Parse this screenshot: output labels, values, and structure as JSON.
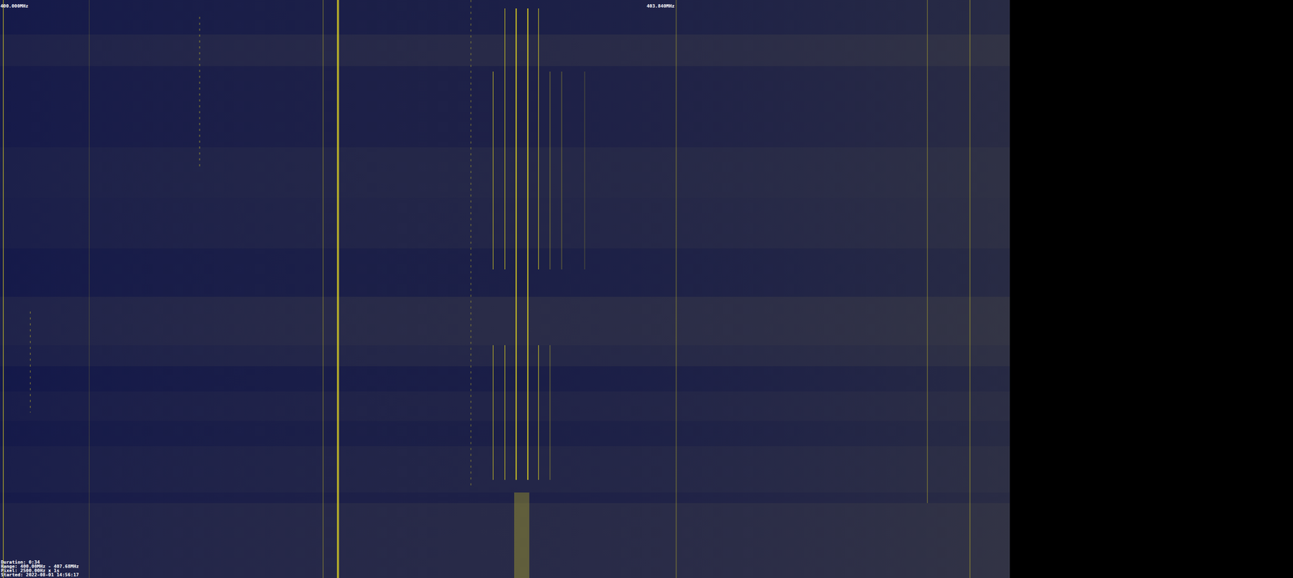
{
  "chart_data": {
    "type": "waterfall",
    "xlim": [
      400,
      407.68
    ],
    "ylim": [
      0,
      1373
    ],
    "band_end": 406.0,
    "xticks": [
      {
        "value": 400,
        "label": "400.000MHz"
      },
      {
        "value": 403.84,
        "label": "403.840MHz"
      }
    ],
    "info": [
      "Duration: 0:34",
      "Range: 400.00MHz - 407.68MHz",
      "Pixel: 2500.00Hz x 1s",
      "Started: 2022-08-01 14:56:17"
    ],
    "bands": [
      {
        "start": 0,
        "end": 82,
        "level": 0.1
      },
      {
        "start": 82,
        "end": 157,
        "level": 0.45
      },
      {
        "start": 157,
        "end": 350,
        "level": 0.15
      },
      {
        "start": 350,
        "end": 470,
        "level": 0.35
      },
      {
        "start": 470,
        "end": 590,
        "level": 0.3
      },
      {
        "start": 590,
        "end": 705,
        "level": 0.1
      },
      {
        "start": 705,
        "end": 820,
        "level": 0.5
      },
      {
        "start": 820,
        "end": 870,
        "level": 0.35
      },
      {
        "start": 870,
        "end": 930,
        "level": 0.05
      },
      {
        "start": 930,
        "end": 1000,
        "level": 0.25
      },
      {
        "start": 1000,
        "end": 1060,
        "level": 0.1
      },
      {
        "start": 1060,
        "end": 1170,
        "level": 0.3
      },
      {
        "start": 1170,
        "end": 1195,
        "level": 0.15
      },
      {
        "start": 1195,
        "end": 1373,
        "level": 0.45
      }
    ],
    "signals": [
      {
        "freq": 400.02,
        "bandwidth": 0.005,
        "start": 0,
        "end": 1373,
        "intensity": 0.6,
        "line_style": "solid"
      },
      {
        "freq": 400.18,
        "bandwidth": 0.004,
        "start": 740,
        "end": 980,
        "intensity": 0.4,
        "line_style": "dotted"
      },
      {
        "freq": 400.53,
        "bandwidth": 0.004,
        "start": 0,
        "end": 1373,
        "intensity": 0.15,
        "line_style": "solid"
      },
      {
        "freq": 401.186,
        "bandwidth": 0.005,
        "start": 40,
        "end": 400,
        "intensity": 0.45,
        "line_style": "dotted"
      },
      {
        "freq": 401.92,
        "bandwidth": 0.005,
        "start": 0,
        "end": 1373,
        "intensity": 0.35,
        "line_style": "solid"
      },
      {
        "freq": 402.008,
        "bandwidth": 0.012,
        "start": 0,
        "end": 1373,
        "intensity": 0.75,
        "line_style": "solid"
      },
      {
        "freq": 402.798,
        "bandwidth": 0.006,
        "start": 0,
        "end": 1160,
        "intensity": 0.3,
        "line_style": "dotted"
      },
      {
        "freq": 402.93,
        "bandwidth": 0.005,
        "start": 170,
        "end": 640,
        "intensity": 0.55,
        "line_style": "solid"
      },
      {
        "freq": 402.93,
        "bandwidth": 0.005,
        "start": 820,
        "end": 1140,
        "intensity": 0.55,
        "line_style": "solid"
      },
      {
        "freq": 403.0,
        "bandwidth": 0.005,
        "start": 20,
        "end": 640,
        "intensity": 0.6,
        "line_style": "solid"
      },
      {
        "freq": 403.0,
        "bandwidth": 0.005,
        "start": 820,
        "end": 1140,
        "intensity": 0.6,
        "line_style": "solid"
      },
      {
        "freq": 403.067,
        "bandwidth": 0.006,
        "start": 20,
        "end": 1140,
        "intensity": 0.95,
        "line_style": "solid"
      },
      {
        "freq": 403.136,
        "bandwidth": 0.006,
        "start": 20,
        "end": 1140,
        "intensity": 0.95,
        "line_style": "solid"
      },
      {
        "freq": 403.2,
        "bandwidth": 0.005,
        "start": 20,
        "end": 640,
        "intensity": 0.6,
        "line_style": "solid"
      },
      {
        "freq": 403.2,
        "bandwidth": 0.005,
        "start": 820,
        "end": 1140,
        "intensity": 0.6,
        "line_style": "solid"
      },
      {
        "freq": 403.268,
        "bandwidth": 0.005,
        "start": 170,
        "end": 640,
        "intensity": 0.35,
        "line_style": "solid"
      },
      {
        "freq": 403.268,
        "bandwidth": 0.005,
        "start": 820,
        "end": 1140,
        "intensity": 0.35,
        "line_style": "solid"
      },
      {
        "freq": 403.337,
        "bandwidth": 0.005,
        "start": 170,
        "end": 640,
        "intensity": 0.3,
        "line_style": "solid"
      },
      {
        "freq": 403.474,
        "bandwidth": 0.005,
        "start": 170,
        "end": 640,
        "intensity": 0.2,
        "line_style": "solid"
      },
      {
        "freq": 403.1,
        "bandwidth": 0.09,
        "start": 1170,
        "end": 1373,
        "intensity": 0.3,
        "line_style": "solid"
      },
      {
        "freq": 404.018,
        "bandwidth": 0.005,
        "start": 0,
        "end": 1373,
        "intensity": 0.35,
        "line_style": "solid"
      },
      {
        "freq": 405.51,
        "bandwidth": 0.005,
        "start": 0,
        "end": 1195,
        "intensity": 0.35,
        "line_style": "solid"
      },
      {
        "freq": 405.763,
        "bandwidth": 0.005,
        "start": 0,
        "end": 1373,
        "intensity": 0.4,
        "line_style": "solid"
      }
    ]
  }
}
